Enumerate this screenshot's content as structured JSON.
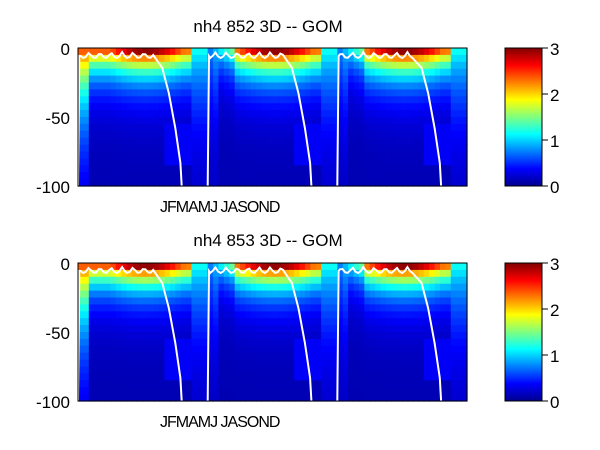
{
  "chart_data": [
    {
      "type": "heatmap",
      "title": "nh4  852 3D   -- GOM",
      "xlabel": "",
      "ylabel": "",
      "ylim": [
        -100,
        0
      ],
      "y_ticks": [
        "0",
        "-50",
        "-100"
      ],
      "x_tick_label": "JFMAMJ JASOND",
      "x_years_shown": 3,
      "overlay_line": "white mixed-layer depth contour",
      "colorbar": {
        "range": [
          0,
          3
        ],
        "ticks": [
          "0",
          "1",
          "2",
          "3"
        ],
        "colormap": "jet"
      }
    },
    {
      "type": "heatmap",
      "title": "nh4  853 3D   -- GOM",
      "xlabel": "",
      "ylabel": "",
      "ylim": [
        -100,
        0
      ],
      "y_ticks": [
        "0",
        "-50",
        "-100"
      ],
      "x_tick_label": "JFMAMJ JASOND",
      "x_years_shown": 3,
      "overlay_line": "white mixed-layer depth contour",
      "colorbar": {
        "range": [
          0,
          3
        ],
        "ticks": [
          "0",
          "1",
          "2",
          "3"
        ],
        "colormap": "jet"
      }
    }
  ]
}
